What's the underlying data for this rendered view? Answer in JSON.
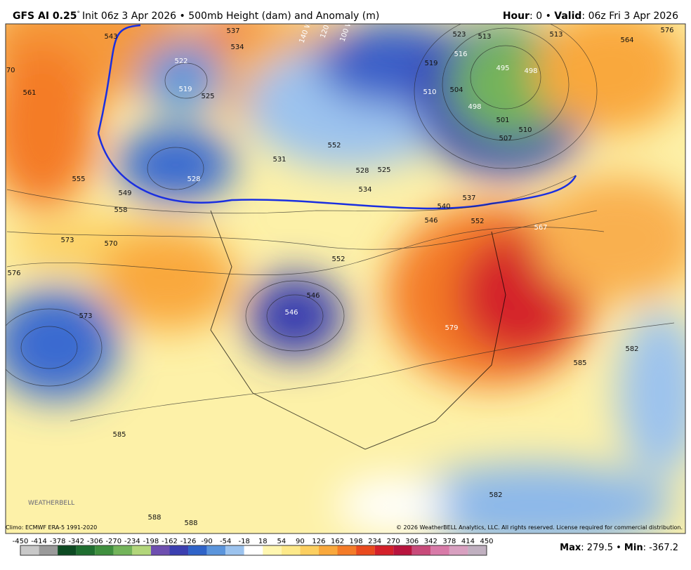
{
  "header": {
    "model": "GFS AI 0.25",
    "degree": "°",
    "description": "Init 06z 3 Apr 2026 • 500mb Height (dam) and Anomaly (m)",
    "hour_label": "Hour",
    "hour_text": ": 0 • ",
    "valid_label": "Valid",
    "valid_text": ": 06z Fri 3 Apr 2026"
  },
  "map": {
    "contour_labels": [
      "543",
      "537",
      "534",
      "522",
      "519",
      "525",
      "528",
      "531",
      "552",
      "525",
      "528",
      "534",
      "537",
      "540",
      "546",
      "552",
      "555",
      "549",
      "558",
      "561",
      "570",
      "573",
      "570",
      "576",
      "573",
      "552",
      "546",
      "546",
      "579",
      "567",
      "582",
      "585",
      "585",
      "588",
      "588",
      "582",
      "495",
      "498",
      "501",
      "507",
      "510",
      "513",
      "516",
      "519",
      "510",
      "504",
      "498",
      "576",
      "564",
      "513",
      "523"
    ],
    "longitude_labels": [
      "140 W",
      "120 W",
      "100 W"
    ],
    "logo": "WEATHERBELL"
  },
  "footer": {
    "climo": "Climo: ECMWF ERA-5 1991-2020",
    "copyright": "© 2026 WeatherBELL Analytics, LLC. All rights reserved. License required for commercial distribution.",
    "colorbar_ticks": [
      -450,
      -414,
      -378,
      -342,
      -306,
      -270,
      -234,
      -198,
      -162,
      -126,
      -90,
      -54,
      -18,
      18,
      54,
      90,
      126,
      162,
      198,
      234,
      270,
      306,
      342,
      378,
      414,
      450
    ],
    "colorbar_colors": [
      "#c8c8c8",
      "#9a9a9a",
      "#0d4a22",
      "#1f6e30",
      "#3f8f3e",
      "#73b45a",
      "#b2d67a",
      "#6e4fb0",
      "#3b3fb0",
      "#2f63c8",
      "#5b95dc",
      "#9cc3ee",
      "#ffffff",
      "#fff6b0",
      "#fde98a",
      "#fccf60",
      "#f9a83c",
      "#f47b28",
      "#e94a1e",
      "#d4202a",
      "#b8143e",
      "#c84a7a",
      "#d87aa8",
      "#d8a0c0",
      "#c0b0c0"
    ],
    "max_label": "Max",
    "max_text": ": 279.5 • ",
    "min_label": "Min",
    "min_text": ": -367.2"
  }
}
